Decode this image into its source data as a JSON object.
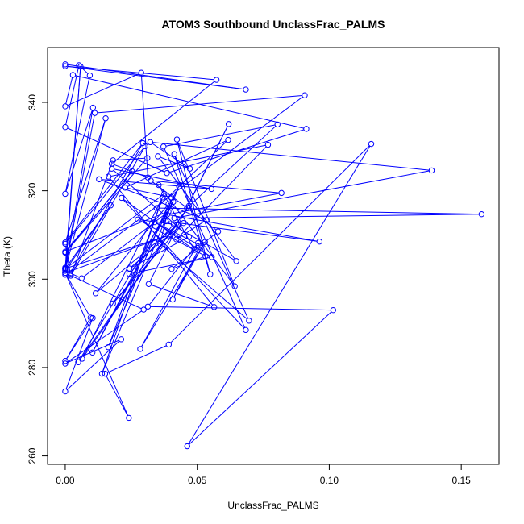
{
  "chart_data": {
    "type": "line",
    "title": "ATOM3 Southbound UnclassFrac_PALMS",
    "xlabel": "UnclassFrac_PALMS",
    "ylabel": "Theta (K)",
    "xlim": [
      -0.0067,
      0.1643
    ],
    "ylim": [
      258.1,
      352.4
    ],
    "x_ticks": [
      0.0,
      0.05,
      0.1,
      0.15
    ],
    "x_tick_labels": [
      "0.00",
      "0.05",
      "0.10",
      "0.15"
    ],
    "y_ticks": [
      260,
      280,
      300,
      320,
      340
    ],
    "y_tick_labels": [
      "260",
      "280",
      "300",
      "320",
      "340"
    ],
    "grid": false,
    "series": [
      {
        "color": "#0000ff",
        "marker": "open-circle",
        "x": [
          0.0,
          0.0684,
          0.0,
          0.0573,
          0.0176,
          0.0313,
          0.0288,
          0.0,
          0.0029,
          0.0913,
          0.0385,
          0.0,
          0.0052,
          0.0093,
          0.0,
          0.0105,
          0.0,
          0.0058,
          0.0,
          0.0907,
          0.0112,
          0.0,
          0.0153,
          0.0,
          0.0294,
          0.0019,
          0.0,
          0.0303,
          0.0021,
          0.0181,
          0.0311,
          0.0,
          0.0253,
          0.0,
          0.0391,
          0.0062,
          0.0,
          0.0172,
          0.0,
          0.0391,
          0.0,
          0.0096,
          0.0,
          0.0104,
          0.0,
          0.0212,
          0.0,
          0.0297,
          0.0,
          0.0241,
          0.0151,
          0.0392,
          0.1159,
          0.0462,
          0.1015,
          0.0313,
          0.0503,
          0.0284,
          0.0529,
          0.0407,
          0.0513,
          0.0339,
          0.0555,
          0.0243,
          0.0411,
          0.0275,
          0.0531,
          0.0403,
          0.0579,
          0.0324,
          0.0819,
          0.0386,
          0.0963,
          0.0381,
          0.0648,
          0.0351,
          0.0472,
          0.0322,
          0.1388,
          0.0413,
          0.1577,
          0.0346,
          0.0617,
          0.0227,
          0.0402,
          0.0359,
          0.0696,
          0.0413,
          0.0549,
          0.0423,
          0.0642,
          0.0354,
          0.0489,
          0.0213,
          0.0684,
          0.0372,
          0.0804,
          0.0461,
          0.0619,
          0.0316,
          0.0564,
          0.0164,
          0.0768,
          0.0421,
          0.0535,
          0.0128,
          0.0554,
          0.0176,
          0.0469,
          0.0243,
          0.0448,
          0.0181,
          0.0425,
          0.0115,
          0.0391,
          0.0163,
          0.0369,
          0.0139,
          0.0431,
          0.0103,
          0.0409,
          0.0049,
          0.0469,
          0.0064,
          0.0375,
          0.0
        ],
        "y": [
          348.6,
          342.9,
          348.2,
          345.1,
          326.1,
          323.0,
          346.7,
          339.1,
          346.2,
          334.0,
          324.0,
          334.4,
          348.4,
          346.1,
          319.3,
          338.8,
          302.6,
          348.1,
          301.0,
          341.6,
          337.6,
          302.2,
          336.4,
          308.3,
          330.8,
          301.3,
          308.0,
          330.1,
          300.8,
          326.9,
          327.4,
          306.0,
          324.4,
          306.2,
          315.3,
          300.2,
          301.9,
          316.7,
          302.4,
          309.9,
          301.4,
          291.3,
          281.5,
          291.2,
          274.6,
          286.4,
          280.9,
          293.1,
          301.4,
          268.6,
          278.6,
          285.2,
          330.6,
          262.2,
          293.0,
          293.8,
          308.2,
          284.2,
          308.4,
          295.4,
          307.6,
          312.9,
          305.0,
          301.2,
          312.4,
          313.5,
          305.2,
          302.3,
          310.8,
          322.3,
          319.5,
          314.6,
          308.5,
          313.1,
          304.1,
          327.8,
          325.0,
          331.0,
          324.6,
          313.8,
          314.7,
          316.1,
          331.5,
          320.7,
          318.5,
          308.0,
          290.6,
          328.3,
          301.1,
          331.6,
          298.4,
          321.3,
          306.6,
          318.4,
          288.5,
          330.0,
          335.0,
          316.1,
          335.1,
          298.9,
          293.7,
          323.2,
          330.4,
          309.0,
          313.4,
          322.6,
          320.4,
          325.0,
          309.6,
          302.4,
          312.7,
          294.5,
          312.4,
          296.8,
          317.0,
          284.6,
          318.5,
          278.6,
          321.0,
          283.4,
          317.5,
          281.2,
          316.6,
          282.0,
          319.3,
          302.3
        ]
      }
    ]
  }
}
